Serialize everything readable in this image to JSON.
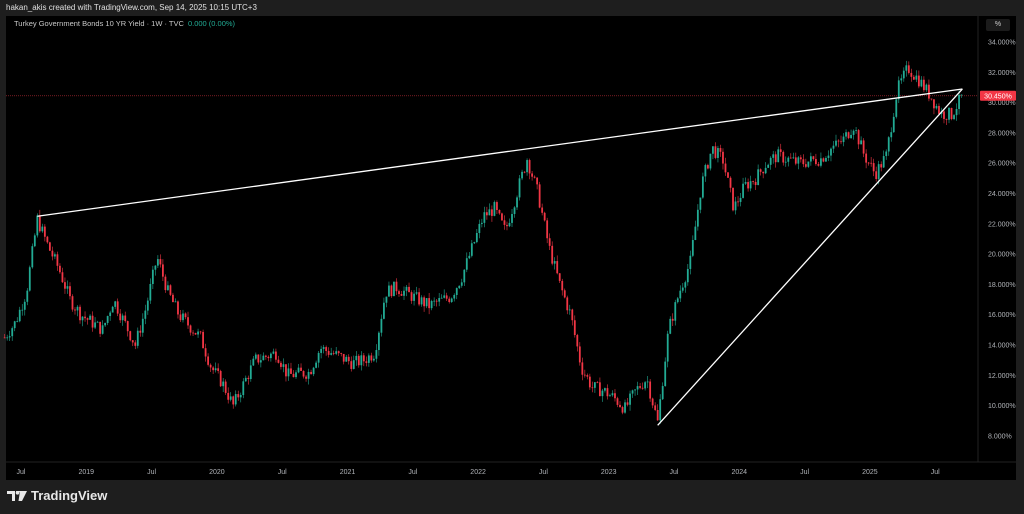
{
  "header": {
    "credit": "hakan_akis created with TradingView.com, Sep 14, 2025 10:15 UTC+3"
  },
  "legend": {
    "symbol": "Turkey Government Bonds 10 YR Yield · 1W · TVC",
    "change": "0.000 (0.00%)"
  },
  "scale_button": "%",
  "brand": {
    "name": "TradingView"
  },
  "colors": {
    "up": "#22ab94",
    "down": "#f23645",
    "price_line": "#f23645",
    "trendline": "#ffffff",
    "background": "#000000"
  },
  "chart_data": {
    "type": "candlestick",
    "interval": "1W",
    "y_ticks": [
      "34.000%",
      "32.000%",
      "30.000%",
      "28.000%",
      "26.000%",
      "24.000%",
      "22.000%",
      "20.000%",
      "18.000%",
      "16.000%",
      "14.000%",
      "12.000%",
      "10.000%",
      "8.000%"
    ],
    "ylim": [
      7,
      35
    ],
    "x_ticks": [
      {
        "label": "Jul",
        "t": 2018.5
      },
      {
        "label": "2019",
        "t": 2019.0
      },
      {
        "label": "Jul",
        "t": 2019.5
      },
      {
        "label": "2020",
        "t": 2020.0
      },
      {
        "label": "Jul",
        "t": 2020.5
      },
      {
        "label": "2021",
        "t": 2021.0
      },
      {
        "label": "Jul",
        "t": 2021.5
      },
      {
        "label": "2022",
        "t": 2022.0
      },
      {
        "label": "Jul",
        "t": 2022.5
      },
      {
        "label": "2023",
        "t": 2023.0
      },
      {
        "label": "Jul",
        "t": 2023.5
      },
      {
        "label": "2024",
        "t": 2024.0
      },
      {
        "label": "Jul",
        "t": 2024.5
      },
      {
        "label": "2025",
        "t": 2025.0
      },
      {
        "label": "Jul",
        "t": 2025.5
      }
    ],
    "last_price": {
      "value": 30.45,
      "label": "30.450%"
    },
    "key_points": [
      [
        "2018-05",
        14.5
      ],
      [
        "2018-06",
        15.5
      ],
      [
        "2018-07",
        17.5
      ],
      [
        "2018-08",
        22.3
      ],
      [
        "2018-09",
        20.5
      ],
      [
        "2018-10",
        19
      ],
      [
        "2018-11",
        17
      ],
      [
        "2018-12",
        16
      ],
      [
        "2019-02",
        15
      ],
      [
        "2019-03",
        17
      ],
      [
        "2019-04",
        15.5
      ],
      [
        "2019-05",
        14
      ],
      [
        "2019-06",
        16.5
      ],
      [
        "2019-07",
        19.8
      ],
      [
        "2019-08",
        17.5
      ],
      [
        "2019-09",
        16
      ],
      [
        "2019-11",
        14.5
      ],
      [
        "2019-12",
        12.5
      ],
      [
        "2020-01",
        11.5
      ],
      [
        "2020-02",
        10
      ],
      [
        "2020-03",
        11.5
      ],
      [
        "2020-04",
        13
      ],
      [
        "2020-06",
        13.5
      ],
      [
        "2020-07",
        12
      ],
      [
        "2020-09",
        12.2
      ],
      [
        "2020-10",
        13.8
      ],
      [
        "2020-11",
        13.5
      ],
      [
        "2021-01",
        12.8
      ],
      [
        "2021-02",
        13
      ],
      [
        "2021-03",
        13.5
      ],
      [
        "2021-04",
        17.5
      ],
      [
        "2021-05",
        17.8
      ],
      [
        "2021-07",
        17
      ],
      [
        "2021-08",
        16.6
      ],
      [
        "2021-10",
        17.2
      ],
      [
        "2021-11",
        18.5
      ],
      [
        "2021-12",
        20.5
      ],
      [
        "2022-01",
        22.5
      ],
      [
        "2022-02",
        23
      ],
      [
        "2022-03",
        21.5
      ],
      [
        "2022-05",
        26.3
      ],
      [
        "2022-06",
        24
      ],
      [
        "2022-07",
        20.5
      ],
      [
        "2022-08",
        18
      ],
      [
        "2022-09",
        16
      ],
      [
        "2022-10",
        12.5
      ],
      [
        "2022-11",
        11.2
      ],
      [
        "2022-12",
        11
      ],
      [
        "2023-01",
        10.5
      ],
      [
        "2023-02",
        9.8
      ],
      [
        "2023-03",
        11
      ],
      [
        "2023-04",
        11.8
      ],
      [
        "2023-05",
        8.9
      ],
      [
        "2023-06",
        15
      ],
      [
        "2023-07",
        17.5
      ],
      [
        "2023-08",
        19.5
      ],
      [
        "2023-09",
        24.5
      ],
      [
        "2023-10",
        27
      ],
      [
        "2023-11",
        26.2
      ],
      [
        "2023-12",
        23
      ],
      [
        "2024-01",
        24.5
      ],
      [
        "2024-02",
        25
      ],
      [
        "2024-03",
        26
      ],
      [
        "2024-04",
        26.5
      ],
      [
        "2024-06",
        26
      ],
      [
        "2024-08",
        26.3
      ],
      [
        "2024-09",
        27
      ],
      [
        "2024-10",
        27.5
      ],
      [
        "2024-11",
        28.5
      ],
      [
        "2024-12",
        26.5
      ],
      [
        "2025-01",
        25.3
      ],
      [
        "2025-02",
        26.5
      ],
      [
        "2025-03",
        30.8
      ],
      [
        "2025-04",
        32.3
      ],
      [
        "2025-05",
        31.5
      ],
      [
        "2025-06",
        30.5
      ],
      [
        "2025-07",
        29.3
      ],
      [
        "2025-08",
        29.2
      ],
      [
        "2025-09",
        30.45
      ]
    ],
    "trendlines": [
      {
        "from": [
          "2018-08",
          22.5
        ],
        "to": [
          "2025-09",
          30.9
        ]
      },
      {
        "from": [
          "2023-05",
          8.7
        ],
        "to": [
          "2025-09",
          30.9
        ]
      }
    ]
  }
}
